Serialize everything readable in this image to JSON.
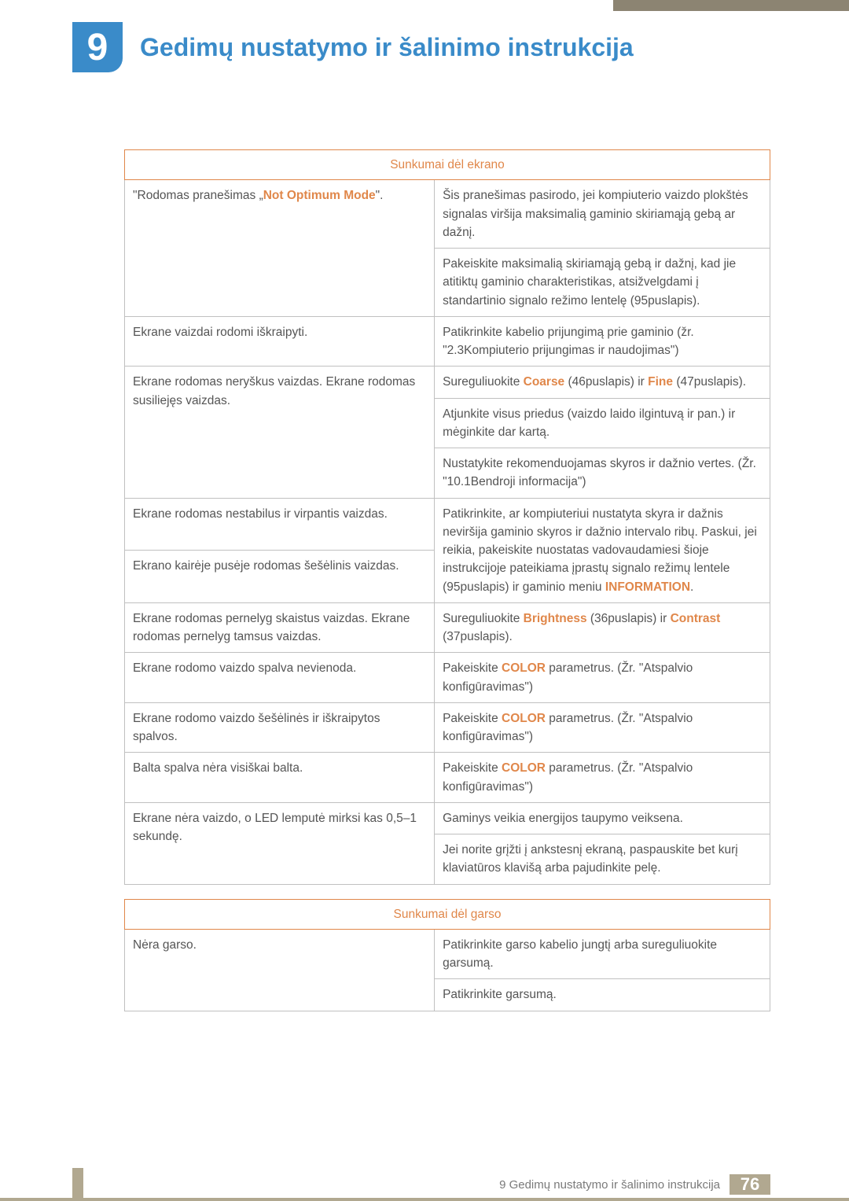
{
  "chapter": {
    "number": "9",
    "title": "Gedimų nustatymo ir šalinimo instrukcija"
  },
  "table1": {
    "header": "Sunkumai dėl ekrano",
    "r1l_a": "\"Rodomas pranešimas „",
    "r1l_b": "Not Optimum Mode",
    "r1l_c": "\".",
    "r1r": "Šis pranešimas pasirodo, jei kompiuterio vaizdo plokštės signalas viršija maksimalią gaminio skiriamąją gebą ar dažnį.",
    "r2r": "Pakeiskite maksimalią skiriamąją gebą ir dažnį, kad jie atitiktų gaminio charakteristikas, atsižvelgdami į standartinio signalo režimo lentelę (95puslapis).",
    "r3l": "Ekrane vaizdai rodomi iškraipyti.",
    "r3r": "Patikrinkite kabelio prijungimą prie gaminio (žr. \"2.3Kompiuterio prijungimas ir naudojimas\")",
    "r4l": "Ekrane rodomas neryškus vaizdas. Ekrane rodomas susiliejęs vaizdas.",
    "r4r_a": "Sureguliuokite ",
    "r4r_b": "Coarse",
    "r4r_c": " (46puslapis) ir ",
    "r4r_d": "Fine",
    "r4r_e": " (47puslapis).",
    "r5r": "Atjunkite visus priedus (vaizdo laido ilgintuvą ir pan.) ir mėginkite dar kartą.",
    "r6r": "Nustatykite rekomenduojamas skyros ir dažnio vertes. (Žr. \"10.1Bendroji informacija\")",
    "r7l": "Ekrane rodomas nestabilus ir virpantis vaizdas.",
    "r8l": "Ekrano kairėje pusėje rodomas šešėlinis vaizdas.",
    "r7r_a": "Patikrinkite, ar kompiuteriui nustatyta skyra ir dažnis neviršija gaminio skyros ir dažnio intervalo ribų. Paskui, jei reikia, pakeiskite nuostatas vadovaudamiesi šioje instrukcijoje pateikiama įprastų signalo režimų lentele (95puslapis) ir gaminio meniu ",
    "r7r_b": "INFORMATION",
    "r7r_c": ".",
    "r9l": "Ekrane rodomas pernelyg skaistus vaizdas. Ekrane rodomas pernelyg tamsus vaizdas.",
    "r9r_a": "Sureguliuokite ",
    "r9r_b": "Brightness",
    "r9r_c": " (36puslapis) ir ",
    "r9r_d": "Contrast",
    "r9r_e": " (37puslapis).",
    "r10l": "Ekrane rodomo vaizdo spalva nevienoda.",
    "r10r_a": "Pakeiskite ",
    "r10r_b": "COLOR",
    "r10r_c": " parametrus. (Žr. \"Atspalvio konfigūravimas\")",
    "r11l": "Ekrane rodomo vaizdo šešėlinės ir iškraipytos spalvos.",
    "r11r_a": "Pakeiskite ",
    "r11r_b": "COLOR",
    "r11r_c": " parametrus. (Žr. \"Atspalvio konfigūravimas\")",
    "r12l": "Balta spalva nėra visiškai balta.",
    "r12r_a": "Pakeiskite ",
    "r12r_b": "COLOR",
    "r12r_c": " parametrus. (Žr. \"Atspalvio konfigūravimas\")",
    "r13l": "Ekrane nėra vaizdo, o LED lemputė mirksi kas 0,5–1 sekundę.",
    "r13r": "Gaminys veikia energijos taupymo veiksena.",
    "r14r": "Jei norite grįžti į ankstesnį ekraną, paspauskite bet kurį klaviatūros klavišą arba pajudinkite pelę."
  },
  "table2": {
    "header": "Sunkumai dėl garso",
    "r1l": "Nėra garso.",
    "r1r": "Patikrinkite garso kabelio jungtį arba sureguliuokite garsumą.",
    "r2r": "Patikrinkite garsumą."
  },
  "footer": {
    "text": "9 Gedimų nustatymo ir šalinimo instrukcija",
    "page": "76"
  }
}
